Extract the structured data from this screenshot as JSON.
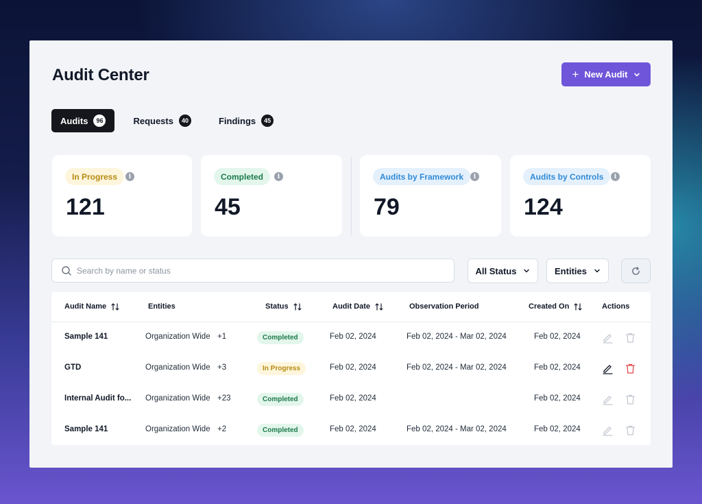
{
  "page": {
    "title": "Audit Center"
  },
  "header": {
    "new_audit_label": "New Audit"
  },
  "tabs": [
    {
      "label": "Audits",
      "count": "96",
      "active": true
    },
    {
      "label": "Requests",
      "count": "40",
      "active": false
    },
    {
      "label": "Findings",
      "count": "45",
      "active": false
    }
  ],
  "stats": [
    {
      "label": "In Progress",
      "value": "121",
      "pill_bg": "#fdf6dc",
      "pill_color": "#b78a12"
    },
    {
      "label": "Completed",
      "value": "45",
      "pill_bg": "#e3f6ec",
      "pill_color": "#1c7a4a"
    },
    {
      "label": "Audits by Framework",
      "value": "79",
      "pill_bg": "#e4f0fc",
      "pill_color": "#2f8ad6"
    },
    {
      "label": "Audits by Controls",
      "value": "124",
      "pill_bg": "#e4f0fc",
      "pill_color": "#2f8ad6"
    }
  ],
  "filters": {
    "search_placeholder": "Search by name or status",
    "status_label": "All Status",
    "entities_label": "Entities"
  },
  "table": {
    "columns": [
      "Audit Name",
      "Entities",
      "Status",
      "Audit Date",
      "Observation Period",
      "Created On",
      "Actions"
    ],
    "rows": [
      {
        "name": "Sample 141",
        "entities": "Organization Wide",
        "extra": "+1",
        "status": "Completed",
        "audit_date": "Feb 02, 2024",
        "observation_period": "Feb 02, 2024 - Mar 02, 2024",
        "created_on": "Feb 02, 2024",
        "actions_active": false
      },
      {
        "name": "GTD",
        "entities": "Organization Wide",
        "extra": "+3",
        "status": "In Progress",
        "audit_date": "Feb 02, 2024",
        "observation_period": "Feb 02, 2024 - Mar 02, 2024",
        "created_on": "Feb 02, 2024",
        "actions_active": true
      },
      {
        "name": "Internal Audit fo...",
        "entities": "Organization Wide",
        "extra": "+23",
        "status": "Completed",
        "audit_date": "Feb 02, 2024",
        "observation_period": "",
        "created_on": "Feb 02, 2024",
        "actions_active": false
      },
      {
        "name": "Sample 141",
        "entities": "Organization Wide",
        "extra": "+2",
        "status": "Completed",
        "audit_date": "Feb 02, 2024",
        "observation_period": "Feb 02, 2024 - Mar 02, 2024",
        "created_on": "Feb 02, 2024",
        "actions_active": false
      }
    ]
  },
  "colors": {
    "accent": "#6e55d9",
    "completed_bg": "#e3f6ec",
    "completed_fg": "#1c7a4a",
    "in_progress_bg": "#fdf6dc",
    "in_progress_fg": "#b78a12",
    "delete_active": "#e5484d"
  },
  "icons": {
    "new_audit": [
      "plus-icon",
      "chevron-down-icon"
    ],
    "stat_info": "info-icon",
    "search": "search-icon",
    "dropdown": "chevron-down-icon",
    "refresh": "refresh-icon",
    "sort": "sort-arrows-icon",
    "row_actions": [
      "edit-icon",
      "trash-icon"
    ]
  }
}
